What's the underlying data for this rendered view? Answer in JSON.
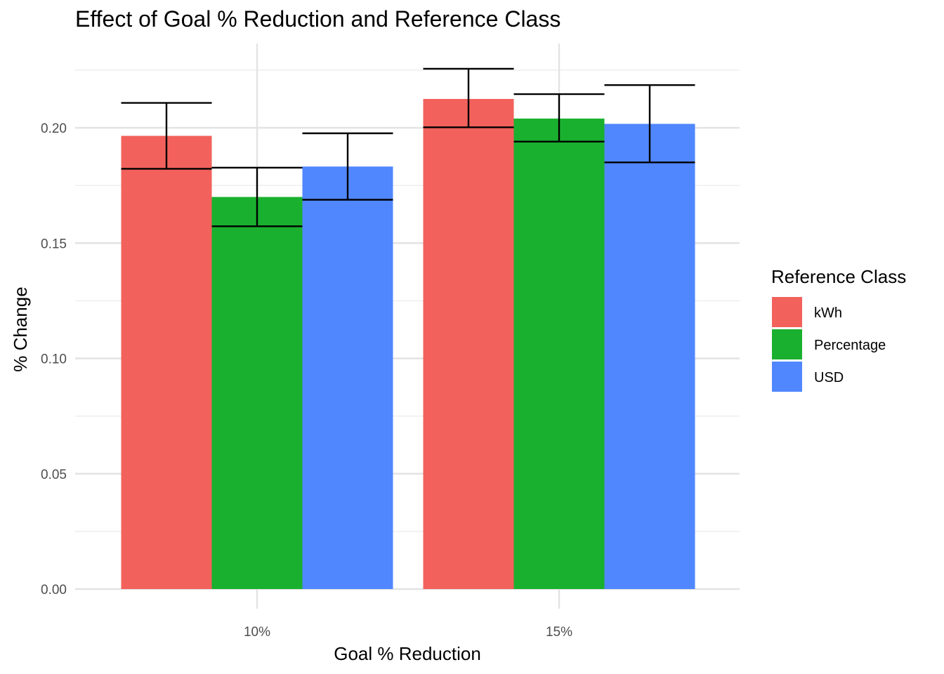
{
  "chart_data": {
    "type": "bar",
    "title": "Effect of Goal % Reduction and Reference Class",
    "xlabel": "Goal % Reduction",
    "ylabel": "% Change",
    "categories": [
      "10%",
      "15%"
    ],
    "ylim": [
      0,
      0.22
    ],
    "yticks": [
      "0.00",
      "0.05",
      "0.10",
      "0.15",
      "0.20"
    ],
    "grid": true,
    "legend": {
      "title": "Reference Class",
      "position": "right"
    },
    "series": [
      {
        "name": "kWh",
        "color": "#F2615C",
        "values": [
          0.1965,
          0.2125
        ],
        "error_low": [
          0.1822,
          0.2002
        ],
        "error_high": [
          0.2108,
          0.2256
        ]
      },
      {
        "name": "Percentage",
        "color": "#1AB02F",
        "values": [
          0.17,
          0.204
        ],
        "error_low": [
          0.1573,
          0.194
        ],
        "error_high": [
          0.1827,
          0.2146
        ]
      },
      {
        "name": "USD",
        "color": "#5087FF",
        "values": [
          0.1832,
          0.2017
        ],
        "error_low": [
          0.1688,
          0.185
        ],
        "error_high": [
          0.1976,
          0.2185
        ]
      }
    ]
  }
}
